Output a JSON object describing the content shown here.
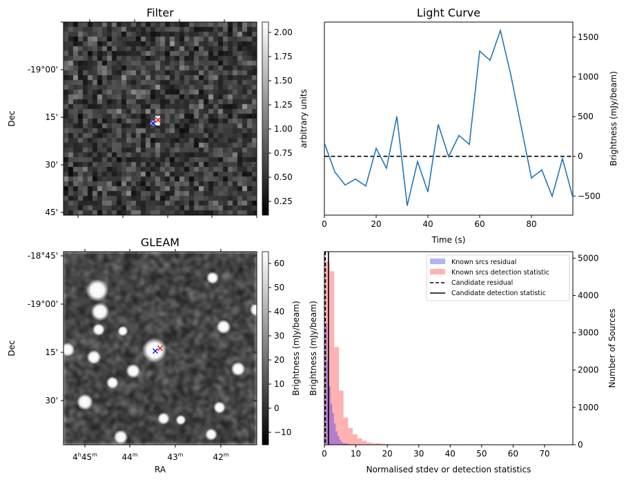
{
  "chart_data": [
    {
      "type": "heatmap",
      "title": "Filter",
      "ylabel": "Dec",
      "y_tick_labels": [
        "-19°00'",
        "15'",
        "30'",
        "45'"
      ],
      "colorbar": {
        "label": "arbitrary units",
        "range": [
          0.107,
          2.107
        ],
        "ticks": [
          "0.25",
          "0.50",
          "0.75",
          "1.00",
          "1.25",
          "1.50",
          "1.75",
          "2.00"
        ],
        "colormap": "gray"
      },
      "markers": [
        {
          "symbol": "x",
          "color": "#0000ff"
        },
        {
          "symbol": "x",
          "color": "#ff0000"
        }
      ]
    },
    {
      "type": "line",
      "title": "Light Curve",
      "xlabel": "Time (s)",
      "ylabel": "Brightness (mJy/beam)",
      "xlim": [
        0,
        96
      ],
      "ylim": [
        -740,
        1690
      ],
      "x_ticks": [
        0,
        20,
        40,
        60,
        80
      ],
      "y_ticks": [
        -500,
        0,
        500,
        1000,
        1500
      ],
      "series": [
        {
          "name": "light curve",
          "color": "#1f77b4",
          "x": [
            0,
            4,
            8,
            12,
            16,
            20,
            24,
            28,
            32,
            36,
            40,
            44,
            48,
            52,
            56,
            60,
            64,
            68,
            72,
            76,
            80,
            84,
            88,
            92,
            96
          ],
          "y": [
            168,
            -194,
            -361,
            -286,
            -373,
            101,
            -150,
            503,
            -621,
            -66,
            -448,
            402,
            -3,
            263,
            150,
            1324,
            1208,
            1584,
            1029,
            379,
            -272,
            -171,
            -503,
            -29,
            -517
          ]
        }
      ],
      "hline": {
        "y": 0,
        "style": "dashed",
        "color": "#000000"
      }
    },
    {
      "type": "heatmap",
      "title": "GLEAM",
      "xlabel": "RA",
      "ylabel": "Dec",
      "x_tick_labels": [
        {
          "h": "4",
          "hs": "h",
          "m": "45",
          "ms": "m"
        },
        {
          "h": "",
          "hs": "",
          "m": "44",
          "ms": "m"
        },
        {
          "h": "",
          "hs": "",
          "m": "43",
          "ms": "m"
        },
        {
          "h": "",
          "hs": "",
          "m": "42",
          "ms": "m"
        }
      ],
      "y_tick_labels": [
        "-18°45'",
        "-19°00'",
        "15'",
        "30'"
      ],
      "colorbar": {
        "label": "Brightness (mJy/beam)",
        "range": [
          -15.1,
          64.9
        ],
        "ticks": [
          "−10",
          "0",
          "10",
          "20",
          "30",
          "40",
          "50",
          "60"
        ],
        "colormap": "gray"
      },
      "markers": [
        {
          "symbol": "x",
          "color": "#0000ff"
        },
        {
          "symbol": "x",
          "color": "#ff0000"
        }
      ]
    },
    {
      "type": "bar",
      "subtype": "histogram",
      "xlabel": "Normalised stdev or detection statistics",
      "ylabel_left": "Brightness (mJy/beam)",
      "ylabel_right": "Number of Sources",
      "xlim": [
        0,
        79
      ],
      "ylim": [
        0,
        5172
      ],
      "x_ticks": [
        0,
        10,
        20,
        30,
        40,
        50,
        60,
        70
      ],
      "y_ticks": [
        0,
        1000,
        2000,
        3000,
        4000,
        5000
      ],
      "legend_position": "top-right",
      "series": [
        {
          "name": "Known srcs residual",
          "color": "#0000ff",
          "alpha": 0.3,
          "bin_start": 0.3,
          "bin_width": 0.55,
          "counts": [
            3250,
            2240,
            1560,
            1100,
            850,
            575,
            360,
            235,
            140,
            80,
            40,
            40,
            40,
            20,
            10,
            8,
            5,
            3,
            2,
            1
          ]
        },
        {
          "name": "Known srcs detection statistic",
          "color": "#ff0000",
          "alpha": 0.3,
          "bin_start": 0.2,
          "bin_width": 1.47,
          "counts": [
            4910,
            4650,
            2620,
            1450,
            730,
            450,
            280,
            170,
            110,
            60,
            40,
            40,
            25,
            20,
            15,
            12,
            10,
            8,
            6,
            5,
            5,
            4,
            3,
            3,
            2,
            10,
            3,
            10,
            2,
            1,
            10,
            1,
            1,
            1,
            1,
            0,
            10,
            0,
            0,
            0,
            0,
            0,
            0,
            0,
            0,
            0,
            0,
            0,
            0,
            10
          ]
        }
      ],
      "lines": [
        {
          "name": "Candidate residual",
          "x": 0.3,
          "style": "dashed",
          "color": "#000000"
        },
        {
          "name": "Candidate detection statistic",
          "x": 1.3,
          "style": "solid",
          "color": "#000000"
        }
      ]
    }
  ]
}
